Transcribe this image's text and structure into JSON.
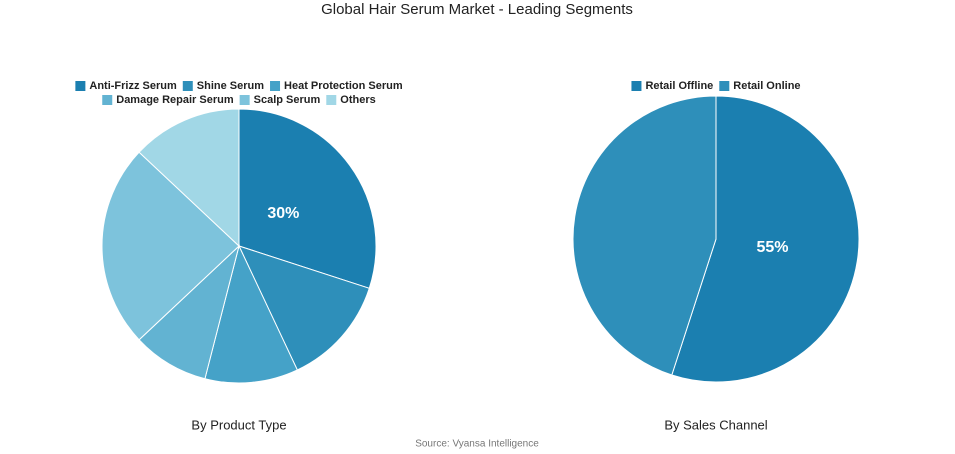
{
  "title": "Global Hair Serum Market - Leading Segments",
  "source": "Source: Vyansa Intelligence",
  "chart_data": [
    {
      "type": "pie",
      "subtitle": "By Product Type",
      "categories": [
        "Anti-Frizz Serum",
        "Shine Serum",
        "Heat Protection Serum",
        "Damage Repair Serum",
        "Scalp Serum",
        "Others"
      ],
      "values": [
        30,
        13,
        11,
        9,
        24,
        13
      ],
      "value_labels": [
        "30%",
        null,
        null,
        null,
        null,
        null
      ],
      "colors": [
        "#1b7fb0",
        "#2e8fba",
        "#45a2c8",
        "#62b3d2",
        "#7dc3dc",
        "#a1d7e6"
      ],
      "legend": "top"
    },
    {
      "type": "pie",
      "subtitle": "By Sales Channel",
      "categories": [
        "Retail Offline",
        "Retail Online"
      ],
      "values": [
        55,
        45
      ],
      "value_labels": [
        "55%",
        null
      ],
      "colors": [
        "#1b7fb0",
        "#2e8fba"
      ],
      "legend": "top"
    }
  ]
}
